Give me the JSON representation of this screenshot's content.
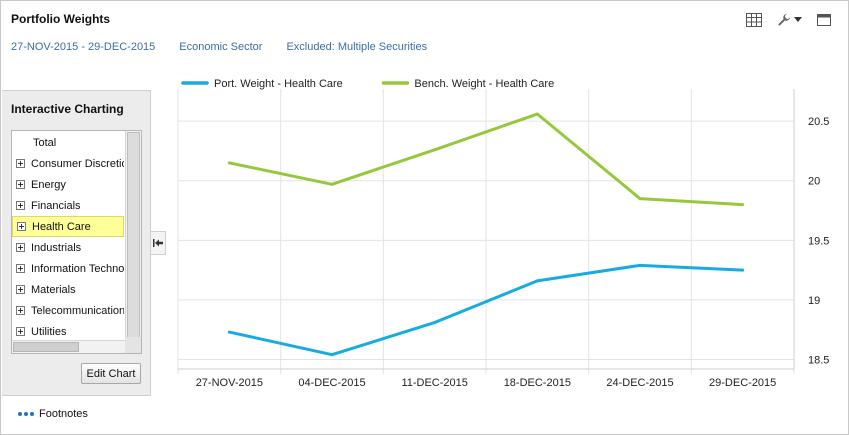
{
  "header": {
    "title": "Portfolio Weights"
  },
  "subheader": {
    "date_range": "27-NOV-2015 - 29-DEC-2015",
    "grouping": "Economic Sector",
    "exclusions": "Excluded: Multiple Securities"
  },
  "toolbar": {
    "icons": [
      "table-icon",
      "wrench-icon",
      "dropdown-caret-icon",
      "maximize-icon"
    ]
  },
  "panel": {
    "title": "Interactive Charting",
    "tree": [
      {
        "label": "Total",
        "expandable": false,
        "selected": false
      },
      {
        "label": "Consumer Discretionary",
        "expandable": true,
        "selected": false
      },
      {
        "label": "Energy",
        "expandable": true,
        "selected": false
      },
      {
        "label": "Financials",
        "expandable": true,
        "selected": false
      },
      {
        "label": "Health Care",
        "expandable": true,
        "selected": true
      },
      {
        "label": "Industrials",
        "expandable": true,
        "selected": false
      },
      {
        "label": "Information Technology",
        "expandable": true,
        "selected": false
      },
      {
        "label": "Materials",
        "expandable": true,
        "selected": false
      },
      {
        "label": "Telecommunication Services",
        "expandable": true,
        "selected": false
      },
      {
        "label": "Utilities",
        "expandable": true,
        "selected": false
      }
    ],
    "edit_button": "Edit Chart",
    "highlight_color": "#ffff99"
  },
  "footnotes": {
    "label": "Footnotes"
  },
  "chart_data": {
    "type": "line",
    "title": "",
    "xlabel": "",
    "ylabel": "",
    "x": [
      "27-NOV-2015",
      "04-DEC-2015",
      "11-DEC-2015",
      "18-DEC-2015",
      "24-DEC-2015",
      "29-DEC-2015"
    ],
    "ylim": [
      18.42,
      20.77
    ],
    "yticks": [
      "18.5",
      "19",
      "19.5",
      "20",
      "20.5"
    ],
    "y_axis_side": "right",
    "grid": true,
    "legend_position": "top-left",
    "series": [
      {
        "name": "Port. Weight - Health Care",
        "color": "#16ace2",
        "values": [
          18.73,
          18.54,
          18.81,
          19.16,
          19.29,
          19.25
        ]
      },
      {
        "name": "Bench. Weight - Health Care",
        "color": "#96c83c",
        "values": [
          20.15,
          19.97,
          20.26,
          20.56,
          19.85,
          19.8
        ]
      }
    ]
  }
}
